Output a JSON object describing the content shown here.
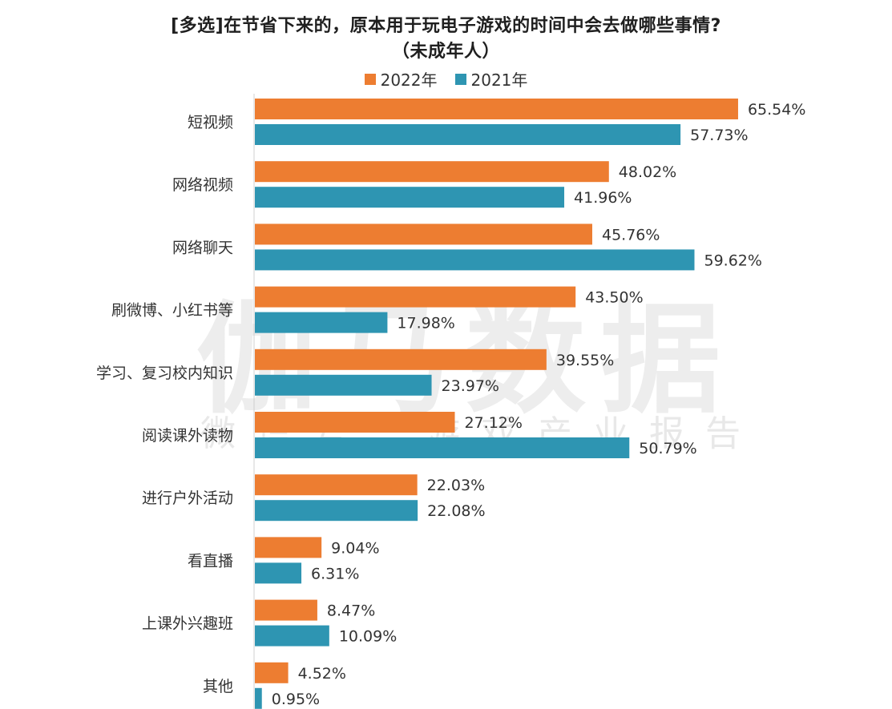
{
  "title": {
    "line1": "[多选]在节省下来的，原本用于玩电子游戏的时间中会去做哪些事情?",
    "line2": "（未成年人）"
  },
  "watermark": {
    "main": "伽马数据",
    "sub": "微信号：游戏产业报告"
  },
  "chart_data": {
    "type": "bar",
    "orientation": "horizontal",
    "title": "[多选]在节省下来的，原本用于玩电子游戏的时间中会去做哪些事情?（未成年人）",
    "categories": [
      "短视频",
      "网络视频",
      "网络聊天",
      "刷微博、小红书等",
      "学习、复习校内知识",
      "阅读课外读物",
      "进行户外活动",
      "看直播",
      "上课外兴趣班",
      "其他"
    ],
    "series": [
      {
        "name": "2022年",
        "color": "#ED7D31",
        "values": [
          65.54,
          48.02,
          45.76,
          43.5,
          39.55,
          27.12,
          22.03,
          9.04,
          8.47,
          4.52
        ],
        "labels": [
          "65.54%",
          "48.02%",
          "45.76%",
          "43.50%",
          "39.55%",
          "27.12%",
          "22.03%",
          "9.04%",
          "8.47%",
          "4.52%"
        ]
      },
      {
        "name": "2021年",
        "color": "#2E95B2",
        "values": [
          57.73,
          41.96,
          59.62,
          17.98,
          23.97,
          50.79,
          22.08,
          6.31,
          10.09,
          0.95
        ],
        "labels": [
          "57.73%",
          "41.96%",
          "59.62%",
          "17.98%",
          "23.97%",
          "50.79%",
          "22.08%",
          "6.31%",
          "10.09%",
          "0.95%"
        ]
      }
    ],
    "xlim": [
      0,
      70
    ],
    "grid": false,
    "legend_position": "top-center"
  }
}
